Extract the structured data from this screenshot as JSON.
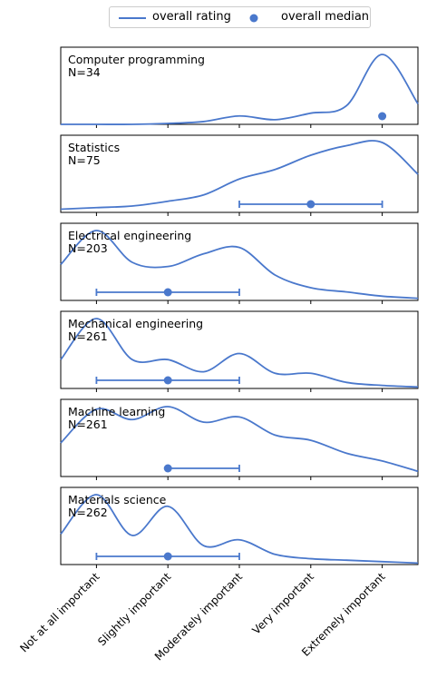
{
  "legend": {
    "line_label": "overall rating",
    "dot_label": "overall median",
    "placement": "top-center"
  },
  "chart_data": {
    "type": "line",
    "subtype": "kde-panels",
    "color": "#4a78cc",
    "x_categories": [
      "Not at all important",
      "Slightly important",
      "Moderately important",
      "Very important",
      "Extremely important"
    ],
    "x_range": [
      0.5,
      5.5
    ],
    "panels": [
      {
        "title": "Computer programming",
        "n_label": "N=34",
        "x": [
          0.5,
          1.0,
          1.5,
          2.0,
          2.5,
          3.0,
          3.5,
          4.0,
          4.5,
          5.0,
          5.5
        ],
        "density": [
          0.0,
          0.0,
          0.0,
          0.01,
          0.03,
          0.09,
          0.05,
          0.12,
          0.2,
          0.75,
          0.22
        ],
        "median": 5,
        "iqr": [
          5,
          5
        ]
      },
      {
        "title": "Statistics",
        "n_label": "N=75",
        "x": [
          0.5,
          1.0,
          1.5,
          2.0,
          2.5,
          3.0,
          3.5,
          4.0,
          4.5,
          5.0,
          5.5
        ],
        "density": [
          0.02,
          0.03,
          0.04,
          0.07,
          0.11,
          0.21,
          0.27,
          0.36,
          0.42,
          0.44,
          0.24
        ],
        "median": 4,
        "iqr": [
          3,
          5
        ]
      },
      {
        "title": "Electrical engineering",
        "n_label": "N=203",
        "x": [
          0.5,
          1.0,
          1.5,
          2.0,
          2.5,
          3.0,
          3.5,
          4.0,
          4.5,
          5.0,
          5.5
        ],
        "density": [
          0.17,
          0.33,
          0.18,
          0.16,
          0.22,
          0.25,
          0.12,
          0.06,
          0.04,
          0.02,
          0.01
        ],
        "median": 2,
        "iqr": [
          1,
          3
        ]
      },
      {
        "title": "Mechanical engineering",
        "n_label": "N=261",
        "x": [
          0.5,
          1.0,
          1.5,
          2.0,
          2.5,
          3.0,
          3.5,
          4.0,
          4.5,
          5.0,
          5.5
        ],
        "density": [
          0.19,
          0.46,
          0.19,
          0.19,
          0.11,
          0.23,
          0.1,
          0.1,
          0.04,
          0.02,
          0.01
        ],
        "median": 2,
        "iqr": [
          1,
          3
        ]
      },
      {
        "title": "Machine learning",
        "n_label": "N=261",
        "x": [
          0.5,
          1.0,
          1.5,
          2.0,
          2.5,
          3.0,
          3.5,
          4.0,
          4.5,
          5.0,
          5.5
        ],
        "density": [
          0.13,
          0.26,
          0.22,
          0.27,
          0.21,
          0.23,
          0.16,
          0.14,
          0.09,
          0.06,
          0.02
        ],
        "median": 2,
        "iqr": [
          2,
          3
        ]
      },
      {
        "title": "Materials science",
        "n_label": "N=262",
        "x": [
          0.5,
          1.0,
          1.5,
          2.0,
          2.5,
          3.0,
          3.5,
          4.0,
          4.5,
          5.0,
          5.5
        ],
        "density": [
          0.21,
          0.48,
          0.2,
          0.4,
          0.13,
          0.17,
          0.07,
          0.04,
          0.03,
          0.02,
          0.01
        ],
        "median": 2,
        "iqr": [
          1,
          3
        ]
      }
    ],
    "grid": false
  }
}
